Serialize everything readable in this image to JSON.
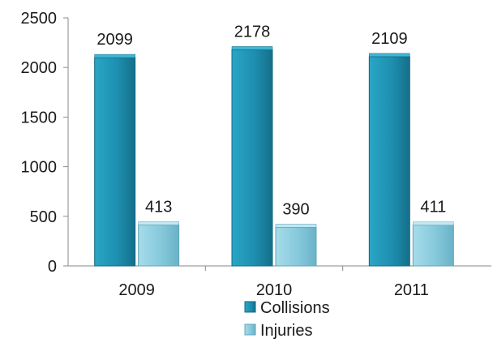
{
  "chart_data": {
    "type": "bar",
    "title": "",
    "xlabel": "",
    "ylabel": "",
    "categories": [
      "2009",
      "2010",
      "2011"
    ],
    "series": [
      {
        "name": "Collisions",
        "values": [
          2099,
          2178,
          2109
        ],
        "color": "#1f8fae"
      },
      {
        "name": "Injuries",
        "values": [
          413,
          390,
          411
        ],
        "color": "#8fd0e3"
      }
    ],
    "ylim": [
      0,
      2500
    ],
    "yticks": [
      "0",
      "500",
      "1000",
      "1500",
      "2000",
      "2500"
    ],
    "data_labels": [
      [
        "2099",
        "2178",
        "2109"
      ],
      [
        "413",
        "390",
        "411"
      ]
    ],
    "grid": false,
    "legend": "bottom-center"
  }
}
